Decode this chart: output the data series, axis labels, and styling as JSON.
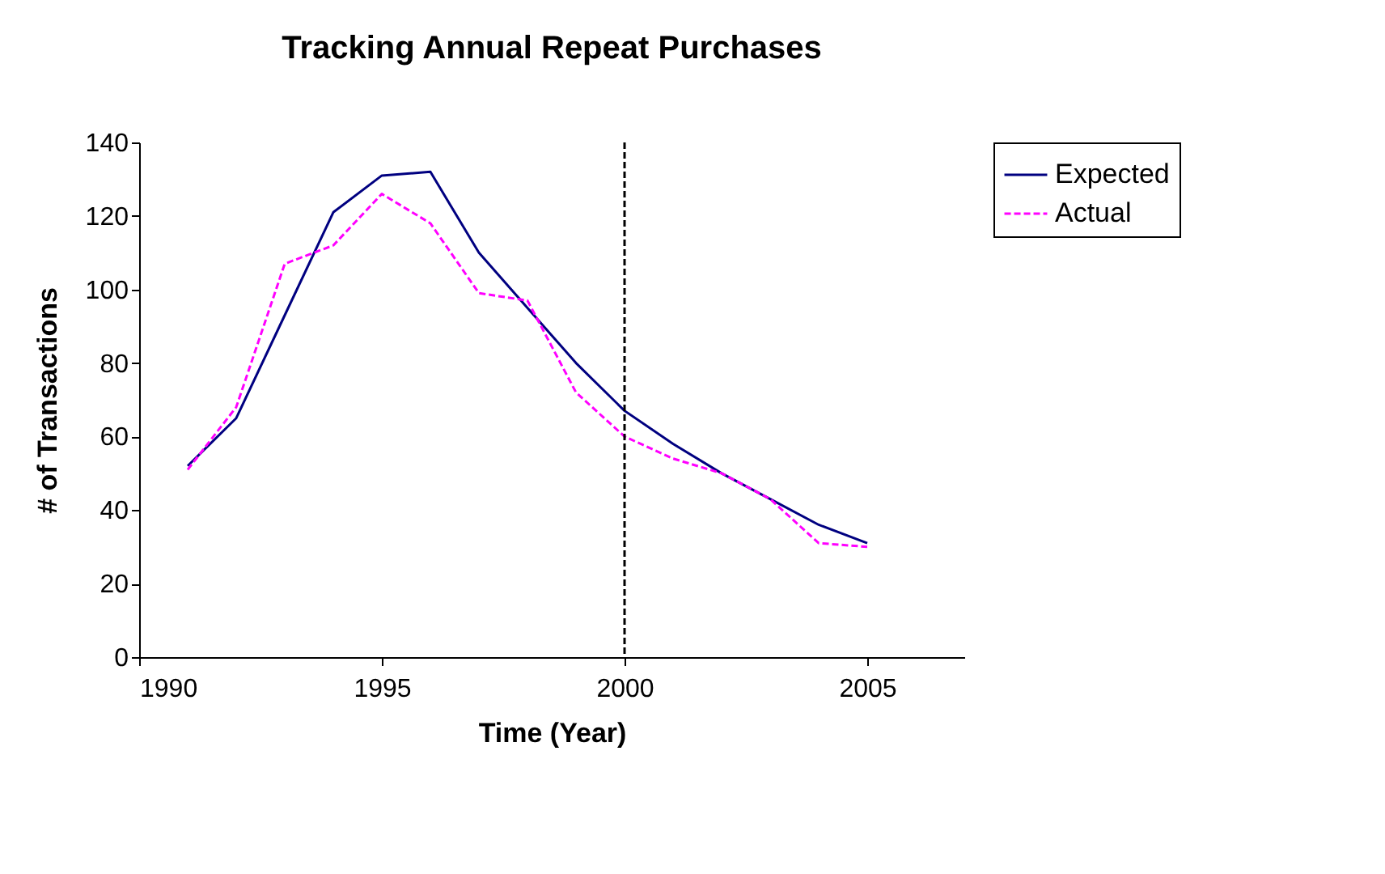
{
  "chart_data": {
    "type": "line",
    "title": "Tracking Annual Repeat Purchases",
    "xlabel": "Time (Year)",
    "ylabel": "# of Transactions",
    "x": [
      1991,
      1992,
      1993,
      1994,
      1995,
      1996,
      1997,
      1998,
      1999,
      2000,
      2001,
      2002,
      2003,
      2004,
      2005
    ],
    "series": [
      {
        "name": "Expected",
        "color": "#000080",
        "line_style": "solid",
        "values": [
          52,
          65,
          93,
          121,
          131,
          132,
          110,
          95,
          80,
          67,
          58,
          50,
          43,
          36,
          31
        ]
      },
      {
        "name": "Actual",
        "color": "#ff00ff",
        "line_style": "dashed",
        "values": [
          51,
          68,
          107,
          112,
          126,
          118,
          99,
          97,
          72,
          60,
          54,
          50,
          43,
          31,
          30
        ]
      }
    ],
    "xlim": [
      1990,
      2007
    ],
    "xticks": [
      1990,
      1995,
      2000,
      2005
    ],
    "ylim": [
      0,
      140
    ],
    "yticks": [
      0,
      20,
      40,
      60,
      80,
      100,
      120,
      140
    ],
    "ref_lines": [
      {
        "axis": "x",
        "value": 2000,
        "color": "#000000",
        "line_style": "dashed"
      }
    ],
    "grid": false,
    "legend": "right",
    "marker": "none"
  }
}
